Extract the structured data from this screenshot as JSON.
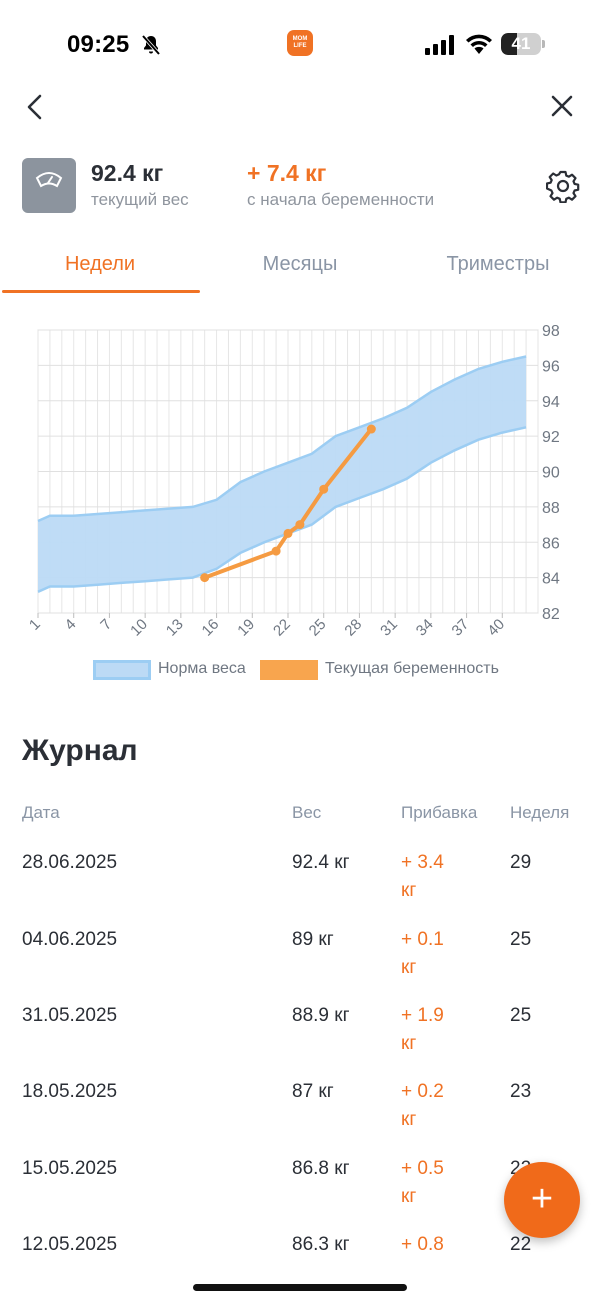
{
  "status_bar": {
    "time": "09:25",
    "battery_level": 41,
    "battery_text": "41",
    "app_logo_text": "MOM LIFE",
    "icons": [
      "bell-slash-icon",
      "cellular-signal-icon",
      "wifi-icon",
      "battery-icon"
    ]
  },
  "nav": {
    "back_icon": "chevron-left-icon",
    "close_icon": "close-icon"
  },
  "summary": {
    "icon": "scale-icon",
    "current_weight": "92.4 кг",
    "current_weight_label": "текущий вес",
    "gain": "+ 7.4 кг",
    "gain_label": "с начала беременности",
    "settings_icon": "gear-icon"
  },
  "tabs": [
    {
      "label": "Недели",
      "active": true
    },
    {
      "label": "Месяцы",
      "active": false
    },
    {
      "label": "Триместры",
      "active": false
    }
  ],
  "chart_data": {
    "type": "area",
    "xlabel": "",
    "ylabel": "",
    "xlim": [
      1,
      43
    ],
    "ylim": [
      82,
      98
    ],
    "x_ticks": [
      1,
      4,
      7,
      10,
      13,
      16,
      19,
      22,
      25,
      28,
      31,
      34,
      37,
      40
    ],
    "y_ticks": [
      82,
      84,
      86,
      88,
      90,
      92,
      94,
      96,
      98
    ],
    "y_axis_position": "right",
    "grid": true,
    "legend": {
      "placement": "bottom",
      "entries": [
        "Норма веса",
        "Текущая беременность"
      ]
    },
    "series": [
      {
        "name": "Норма веса",
        "kind": "band",
        "color": "#bcdaf5",
        "x": [
          1,
          2,
          4,
          6,
          8,
          10,
          12,
          14,
          16,
          18,
          20,
          22,
          24,
          26,
          28,
          30,
          32,
          34,
          36,
          38,
          40,
          42
        ],
        "upper": [
          87.2,
          87.5,
          87.5,
          87.6,
          87.7,
          87.8,
          87.9,
          88.0,
          88.4,
          89.4,
          90.0,
          90.5,
          91.0,
          92.0,
          92.5,
          93.0,
          93.6,
          94.5,
          95.2,
          95.8,
          96.2,
          96.5
        ],
        "lower": [
          83.2,
          83.5,
          83.5,
          83.6,
          83.7,
          83.8,
          83.9,
          84.0,
          84.5,
          85.4,
          86.0,
          86.5,
          87.0,
          88.0,
          88.5,
          89.0,
          89.6,
          90.5,
          91.2,
          91.8,
          92.2,
          92.5
        ]
      },
      {
        "name": "Текущая беременность",
        "kind": "line",
        "color": "#f59b42",
        "x": [
          15,
          21,
          22,
          23,
          25,
          29
        ],
        "y": [
          84.0,
          85.5,
          86.5,
          87.0,
          89.0,
          92.4
        ]
      }
    ]
  },
  "journal": {
    "title": "Журнал",
    "headers": {
      "date": "Дата",
      "weight": "Вес",
      "gain": "Прибавка",
      "week": "Неделя"
    },
    "rows": [
      {
        "date": "28.06.2025",
        "weight": "92.4 кг",
        "gain": "+ 3.4 кг",
        "week": "29"
      },
      {
        "date": "04.06.2025",
        "weight": "89 кг",
        "gain": "+ 0.1 кг",
        "week": "25"
      },
      {
        "date": "31.05.2025",
        "weight": "88.9 кг",
        "gain": "+ 1.9 кг",
        "week": "25"
      },
      {
        "date": "18.05.2025",
        "weight": "87 кг",
        "gain": "+ 0.2 кг",
        "week": "23"
      },
      {
        "date": "15.05.2025",
        "weight": "86.8 кг",
        "gain": "+ 0.5 кг",
        "week": "22"
      },
      {
        "date": "12.05.2025",
        "weight": "86.3 кг",
        "gain": "+ 0.8",
        "week": "22"
      }
    ]
  },
  "fab": {
    "label": "+",
    "icon": "plus-icon"
  },
  "colors": {
    "accent": "#f07224",
    "band": "#bcdaf5",
    "line": "#f59b42",
    "muted": "#8a95a5"
  }
}
